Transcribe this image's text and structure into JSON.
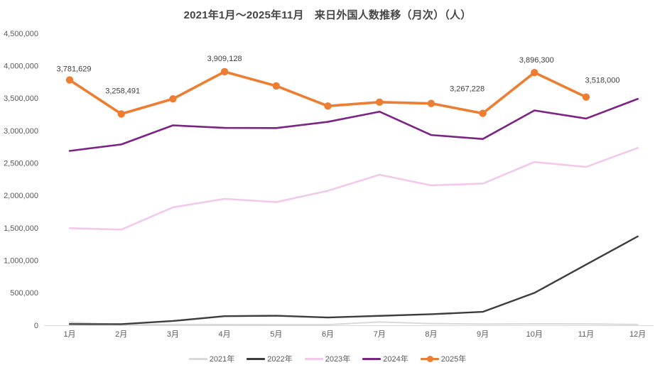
{
  "chart_title": "2021年1月～2025年11月　来日外国人数推移（月次）（人）",
  "chart_data": {
    "type": "line",
    "title": "2021年1月～2025年11月　来日外国人数推移（月次）（人）",
    "xlabel": "",
    "ylabel": "",
    "x_categories": [
      "1月",
      "2月",
      "3月",
      "4月",
      "5月",
      "6月",
      "7月",
      "8月",
      "9月",
      "10月",
      "11月",
      "12月"
    ],
    "ylim": [
      0,
      4500000
    ],
    "y_tick_step": 500000,
    "y_tick_labels": [
      "0",
      "500,000",
      "1,000,000",
      "1,500,000",
      "2,000,000",
      "2,500,000",
      "3,000,000",
      "3,500,000",
      "4,000,000",
      "4,500,000"
    ],
    "grid": false,
    "legend_position": "bottom",
    "series": [
      {
        "name": "2021年",
        "color": "#d9d9d9",
        "values": [
          47000,
          8000,
          12000,
          11000,
          10000,
          9000,
          51000,
          26000,
          18000,
          22000,
          21000,
          12000
        ]
      },
      {
        "name": "2022年",
        "color": "#3d3d3d",
        "values": [
          18000,
          17000,
          66000,
          140000,
          147000,
          120000,
          145000,
          170000,
          207000,
          499000,
          935000,
          1370000
        ]
      },
      {
        "name": "2023年",
        "color": "#f2c8ee",
        "values": [
          1497000,
          1475000,
          1818000,
          1949000,
          1899000,
          2073000,
          2321000,
          2157000,
          2184000,
          2517000,
          2441000,
          2734000
        ]
      },
      {
        "name": "2024年",
        "color": "#7c2483",
        "values": [
          2688000,
          2788000,
          3082000,
          3043000,
          3040000,
          3136000,
          3293000,
          2933000,
          2872000,
          3312000,
          3187000,
          3490000
        ]
      },
      {
        "name": "2025年",
        "color": "#ed7d31",
        "markers": true,
        "values": [
          3781629,
          3258491,
          3490000,
          3909128,
          3690000,
          3380000,
          3440000,
          3420000,
          3267228,
          3896300,
          3518000
        ],
        "data_labels": [
          {
            "index": 0,
            "text": "3,781,629"
          },
          {
            "index": 1,
            "text": "3,258,491"
          },
          {
            "index": 3,
            "text": "3,909,128"
          },
          {
            "index": 8,
            "text": "3,267,228"
          },
          {
            "index": 9,
            "text": "3,896,300"
          },
          {
            "index": 10,
            "text": "3,518,000"
          }
        ]
      }
    ]
  }
}
